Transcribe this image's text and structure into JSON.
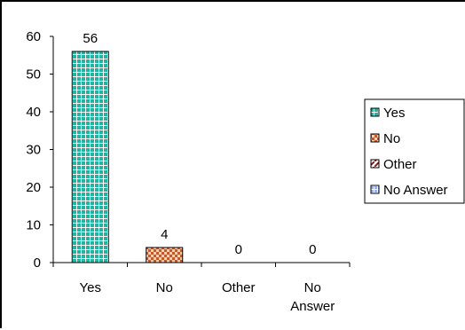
{
  "chart_data": {
    "type": "bar",
    "categories": [
      "Yes",
      "No",
      "Other",
      "No\nAnswer"
    ],
    "category_lines": [
      [
        "Yes"
      ],
      [
        "No"
      ],
      [
        "Other"
      ],
      [
        "No",
        "Answer"
      ]
    ],
    "values": [
      56,
      4,
      0,
      0
    ],
    "data_labels": [
      "56",
      "4",
      "0",
      "0"
    ],
    "ylim": [
      0,
      60
    ],
    "yticks": [
      0,
      10,
      20,
      30,
      40,
      50,
      60
    ],
    "grid": false,
    "legend_position": "right",
    "legend": [
      "Yes",
      "No",
      "Other",
      "No Answer"
    ],
    "colors": {
      "yes": "#1fb5a0",
      "no": "#c8582a",
      "other": "#8a1a1a",
      "no_answer": "#3a5fcd"
    }
  }
}
